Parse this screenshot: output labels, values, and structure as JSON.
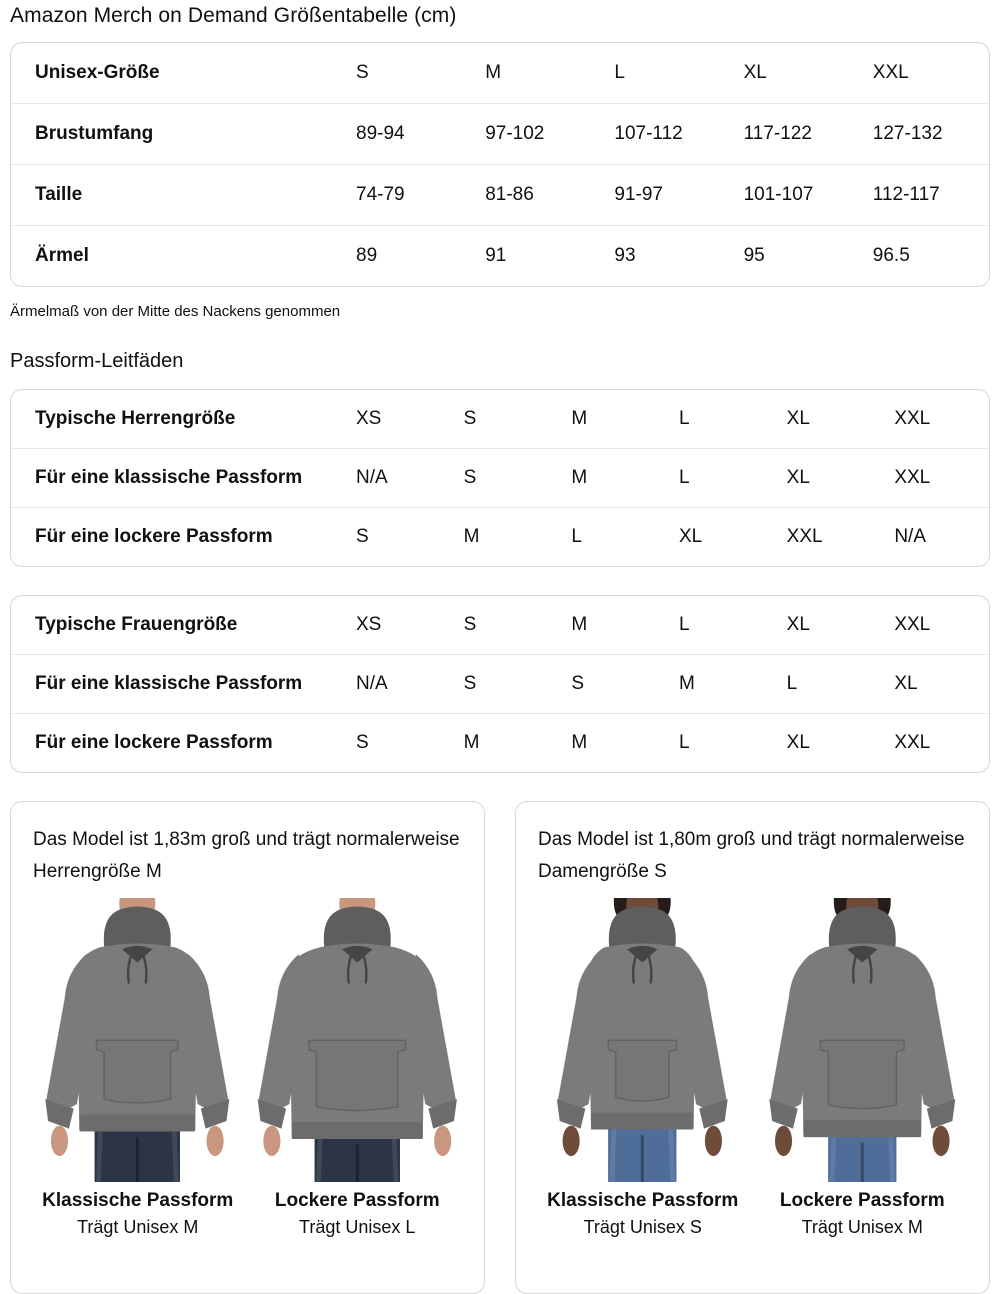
{
  "page": {
    "title": "Amazon Merch on Demand Größentabelle (cm)",
    "note": "Ärmelmaß von der Mitte des Nackens genommen",
    "section_title": "Passform-Leitfäden"
  },
  "size_table": {
    "header": {
      "label": "Unisex-Größe",
      "values": [
        "S",
        "M",
        "L",
        "XL",
        "XXL"
      ]
    },
    "rows": [
      {
        "label": "Brustumfang",
        "values": [
          "89-94",
          "97-102",
          "107-112",
          "117-122",
          "127-132"
        ]
      },
      {
        "label": "Taille",
        "values": [
          "74-79",
          "81-86",
          "91-97",
          "101-107",
          "112-117"
        ]
      },
      {
        "label": "Ärmel",
        "values": [
          "89",
          "91",
          "93",
          "95",
          "96.5"
        ]
      }
    ]
  },
  "fit_tables": [
    {
      "rows": [
        {
          "label": "Typische Herrengröße",
          "values": [
            "XS",
            "S",
            "M",
            "L",
            "XL",
            "XXL"
          ]
        },
        {
          "label": "Für eine klassische Passform",
          "values": [
            "N/A",
            "S",
            "M",
            "L",
            "XL",
            "XXL"
          ]
        },
        {
          "label": "Für eine lockere Passform",
          "values": [
            "S",
            "M",
            "L",
            "XL",
            "XXL",
            "N/A"
          ]
        }
      ]
    },
    {
      "rows": [
        {
          "label": "Typische Frauengröße",
          "values": [
            "XS",
            "S",
            "M",
            "L",
            "XL",
            "XXL"
          ]
        },
        {
          "label": "Für eine klassische Passform",
          "values": [
            "N/A",
            "S",
            "S",
            "M",
            "L",
            "XL"
          ]
        },
        {
          "label": "Für eine lockere Passform",
          "values": [
            "S",
            "M",
            "M",
            "L",
            "XL",
            "XXL"
          ]
        }
      ]
    }
  ],
  "model_cards": [
    {
      "description": "Das Model ist 1,83m groß und trägt normalerweise Herrengröße M",
      "figures": [
        {
          "caption_title": "Klassische Passform",
          "caption_sub": "Trägt Unisex M",
          "gender": "male",
          "fit": "classic",
          "image_alt": "male-model-classic-fit-hoodie"
        },
        {
          "caption_title": "Lockere Passform",
          "caption_sub": "Trägt Unisex L",
          "gender": "male",
          "fit": "loose",
          "image_alt": "male-model-loose-fit-hoodie"
        }
      ]
    },
    {
      "description": "Das Model ist 1,80m groß und trägt normalerweise Damengröße S",
      "figures": [
        {
          "caption_title": "Klassische Passform",
          "caption_sub": "Trägt Unisex S",
          "gender": "female",
          "fit": "classic",
          "image_alt": "female-model-classic-fit-hoodie"
        },
        {
          "caption_title": "Lockere Passform",
          "caption_sub": "Trägt Unisex M",
          "gender": "female",
          "fit": "loose",
          "image_alt": "female-model-loose-fit-hoodie"
        }
      ]
    }
  ],
  "colors": {
    "text": "#0f1111",
    "table_border": "#d5d9d9",
    "row_separator": "#e7e7e7",
    "hoodie": "#7b7b7b",
    "hoodie_dark": "#6c6c6c",
    "hood_shadow": "#5e5e5e",
    "neck_opening": "#454545",
    "male_skin": "#c9977f",
    "female_skin": "#6f4b39",
    "male_jeans": "#2c3547",
    "female_jeans": "#4e6d99",
    "hair_dark": "#241d1a",
    "earring_gold": "#e5c87e"
  }
}
